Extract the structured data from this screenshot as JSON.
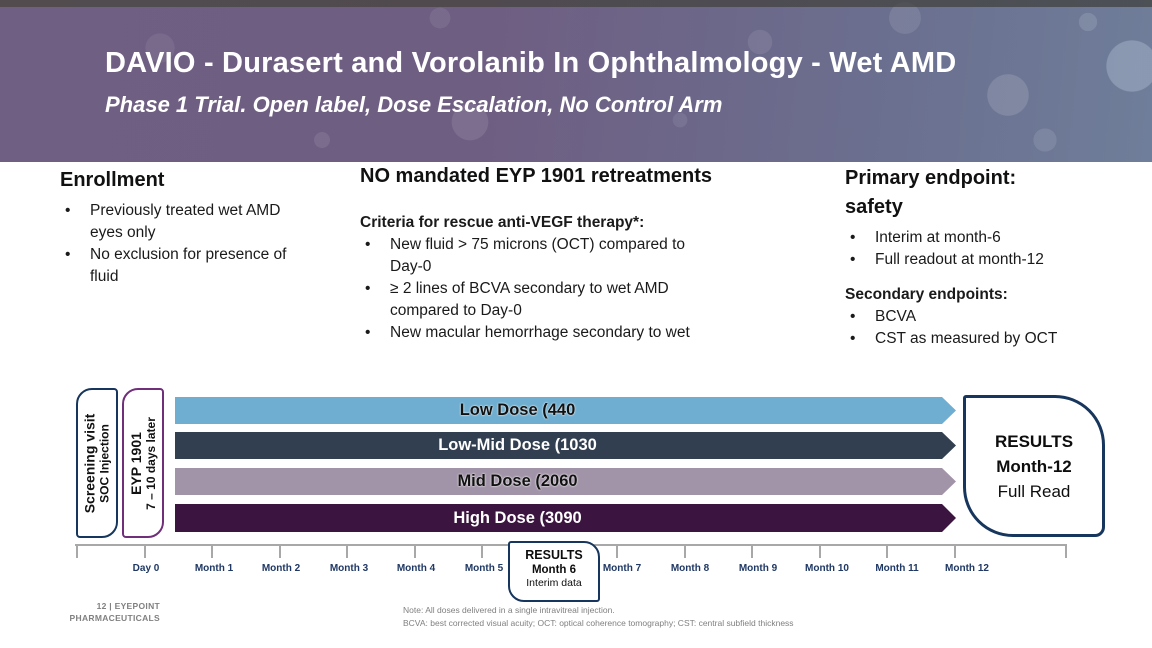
{
  "header": {
    "title": "DAVIO - Durasert and Vorolanib In Ophthalmology - Wet AMD",
    "subtitle": "Phase 1 Trial. Open label, Dose Escalation, No Control Arm"
  },
  "columns": {
    "enrollment": {
      "heading": "Enrollment",
      "bullets": [
        "Previously treated wet AMD\neyes only",
        "No exclusion for presence of\nfluid"
      ]
    },
    "retreatment": {
      "heading": "NO mandated EYP 1901 retreatments",
      "subheading": "Criteria for rescue anti-VEGF therapy*:",
      "bullets": [
        "New fluid > 75 microns (OCT) compared to\nDay-0",
        "≥ 2 lines of BCVA secondary to wet AMD\ncompared to Day-0",
        "New macular hemorrhage secondary to wet"
      ]
    },
    "endpoints": {
      "heading": "Primary endpoint:\nsafety",
      "bullets": [
        "Interim at month-6",
        "Full readout at month-12"
      ],
      "secondary_heading": "Secondary endpoints:",
      "secondary_bullets": [
        "BCVA",
        "CST as measured by OCT"
      ]
    }
  },
  "diagram": {
    "screening_box": {
      "line1": "Screening visit",
      "line2": "SOC Injection"
    },
    "eyp_box": {
      "line1": "EYP 1901",
      "line2": "7 – 10 days later"
    },
    "arms": [
      {
        "label": "Low Dose (440",
        "color": "#6FAED0",
        "text_color": "#111111"
      },
      {
        "label": "Low-Mid Dose (1030",
        "color": "#323F50",
        "text_color": "#ffffff"
      },
      {
        "label": "Mid Dose (2060",
        "color": "#A294A8",
        "text_color": "#111111"
      },
      {
        "label": "High Dose (3090",
        "color": "#3C1440",
        "text_color": "#ffffff"
      }
    ],
    "results_month12": {
      "line1": "RESULTS",
      "line2": "Month-12",
      "line3": "Full Read"
    },
    "results_month6": {
      "line1": "RESULTS",
      "line2": "Month 6",
      "line3": "Interim data"
    },
    "timeline_labels": [
      "Day 0",
      "Month 1",
      "Month 2",
      "Month 3",
      "Month 4",
      "Month 5",
      "Month 7",
      "Month 8",
      "Month 9",
      "Month 10",
      "Month 11",
      "Month 12"
    ]
  },
  "footer": {
    "slide_number": "12 | EYEPOINT\nPHARMACEUTICALS",
    "notes": "Note: All doses delivered in a single intravitreal injection.\nBCVA: best corrected visual acuity; OCT: optical coherence tomography; CST: central subfield thickness"
  },
  "colors": {
    "header_gradient_left": "#6F5F83",
    "header_gradient_right": "#6F7E9A",
    "navy_border": "#17365D",
    "purple_border": "#702F7A",
    "timeline_label": "#1F3864",
    "ruler_gray": "#A8A8A8",
    "footer_gray": "#808080"
  }
}
